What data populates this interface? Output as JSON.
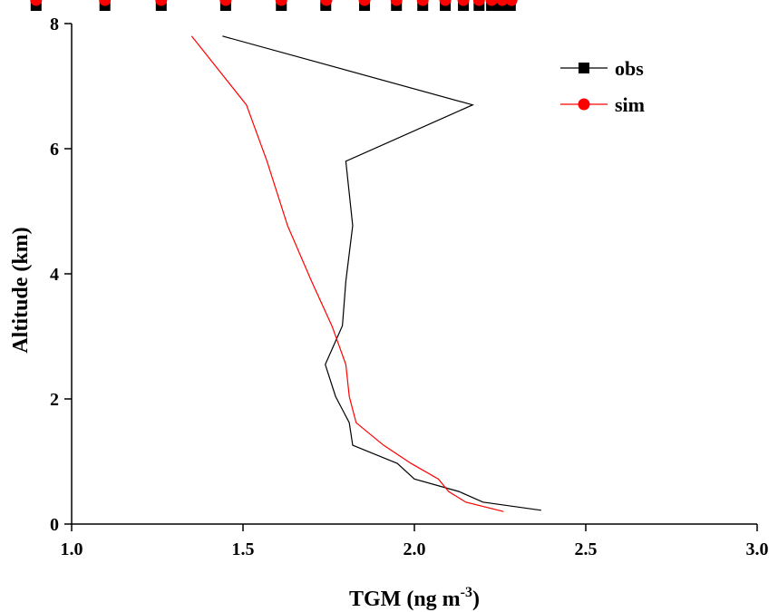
{
  "chart_data": {
    "type": "line",
    "x_label": {
      "text": "TGM (ng m",
      "superscript": "-3",
      "suffix": ")"
    },
    "y_label": "Altitude (km)",
    "xlim": [
      1.0,
      3.0
    ],
    "xticks": [
      {
        "value": 1.0,
        "label": "1.0"
      },
      {
        "value": 1.5,
        "label": "1.5"
      },
      {
        "value": 2.0,
        "label": "2.0"
      },
      {
        "value": 2.5,
        "label": "2.5"
      },
      {
        "value": 3.0,
        "label": "3.0"
      }
    ],
    "ylim": [
      0,
      8
    ],
    "yticks": [
      0,
      2,
      4,
      6,
      8
    ],
    "legend": "upper right",
    "series": [
      {
        "name": "obs",
        "color": "#000000",
        "marker": "square",
        "x": [
          1.44,
          2.17,
          1.8,
          1.82,
          1.8,
          1.79,
          1.74,
          1.77,
          1.81,
          1.82,
          1.95,
          2.0,
          2.13,
          2.2,
          2.37
        ],
        "values": [
          7.8,
          6.7,
          5.8,
          4.77,
          3.88,
          3.17,
          2.55,
          2.04,
          1.62,
          1.26,
          0.97,
          0.72,
          0.52,
          0.35,
          0.22
        ]
      },
      {
        "name": "sim",
        "color": "#ff0000",
        "marker": "circle",
        "x": [
          1.35,
          1.51,
          1.57,
          1.63,
          1.7,
          1.76,
          1.8,
          1.81,
          1.83,
          1.91,
          1.99,
          2.07,
          2.1,
          2.15,
          2.26
        ],
        "values": [
          7.8,
          6.7,
          5.8,
          4.77,
          3.88,
          3.16,
          2.55,
          2.04,
          1.62,
          1.26,
          0.97,
          0.72,
          0.52,
          0.35,
          0.2
        ]
      }
    ]
  }
}
